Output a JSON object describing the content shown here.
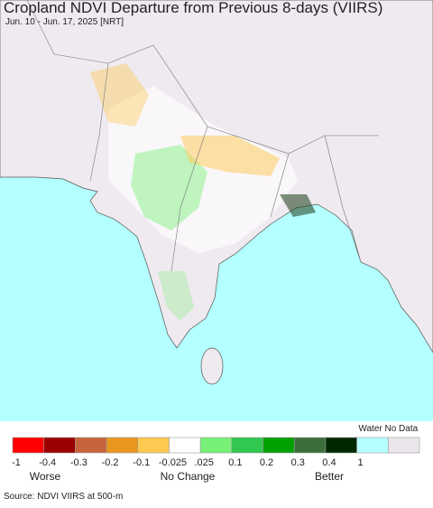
{
  "header": {
    "title": "Cropland NDVI Departure from Previous 8-days (VIIRS)",
    "subtitle": "Jun. 10 - Jun. 17, 2025 [NRT]"
  },
  "legend": {
    "colors": [
      "#ff0000",
      "#9b0000",
      "#c8643c",
      "#e8961e",
      "#ffc850",
      "#ffffff",
      "#78f078",
      "#32c850",
      "#00a000",
      "#3c6e3c",
      "#002800",
      "#b4ffff",
      "#ebe6eb"
    ],
    "ticks": [
      "-1",
      "-0.4",
      "-0.3",
      "-0.2",
      "-0.1",
      "-0.025",
      ".025",
      "0.1",
      "0.2",
      "0.3",
      "0.4",
      "1"
    ],
    "groups": [
      "Worse",
      "No Change",
      "Better"
    ],
    "water_label": "Water No Data"
  },
  "source": "Source: NDVI VIIRS at 500-m"
}
